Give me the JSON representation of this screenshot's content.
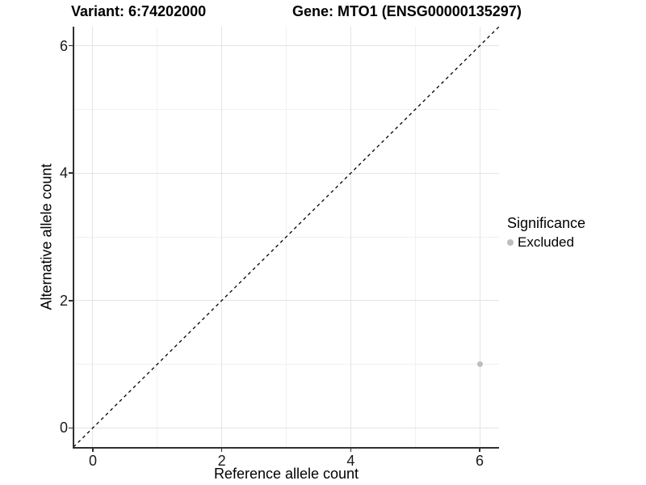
{
  "chart_data": {
    "type": "scatter",
    "title_left": "Variant: 6:74202000",
    "title_right": "Gene: MTO1 (ENSG00000135297)",
    "xlabel": "Reference allele count",
    "ylabel": "Alternative allele count",
    "xlim": [
      -0.3,
      6.3
    ],
    "ylim": [
      -0.3,
      6.3
    ],
    "x_ticks": [
      0,
      2,
      4,
      6
    ],
    "y_ticks": [
      0,
      2,
      4,
      6
    ],
    "x_minor_ticks": [
      1,
      3,
      5
    ],
    "y_minor_ticks": [
      1,
      3,
      5
    ],
    "grid": true,
    "identity_line": {
      "style": "dashed",
      "slope": 1,
      "intercept": 0,
      "color": "#000000"
    },
    "series": [
      {
        "name": "Excluded",
        "color": "#bebebe",
        "points": [
          {
            "x": 6,
            "y": 1
          }
        ]
      }
    ],
    "legend": {
      "title": "Significance",
      "position": "right",
      "items": [
        {
          "label": "Excluded",
          "color": "#bebebe"
        }
      ]
    }
  },
  "colors": {
    "background": "#ffffff",
    "axis": "#303030",
    "grid_major": "#e4e4e4",
    "grid_minor": "#f1f1f1",
    "text": "#000000"
  }
}
